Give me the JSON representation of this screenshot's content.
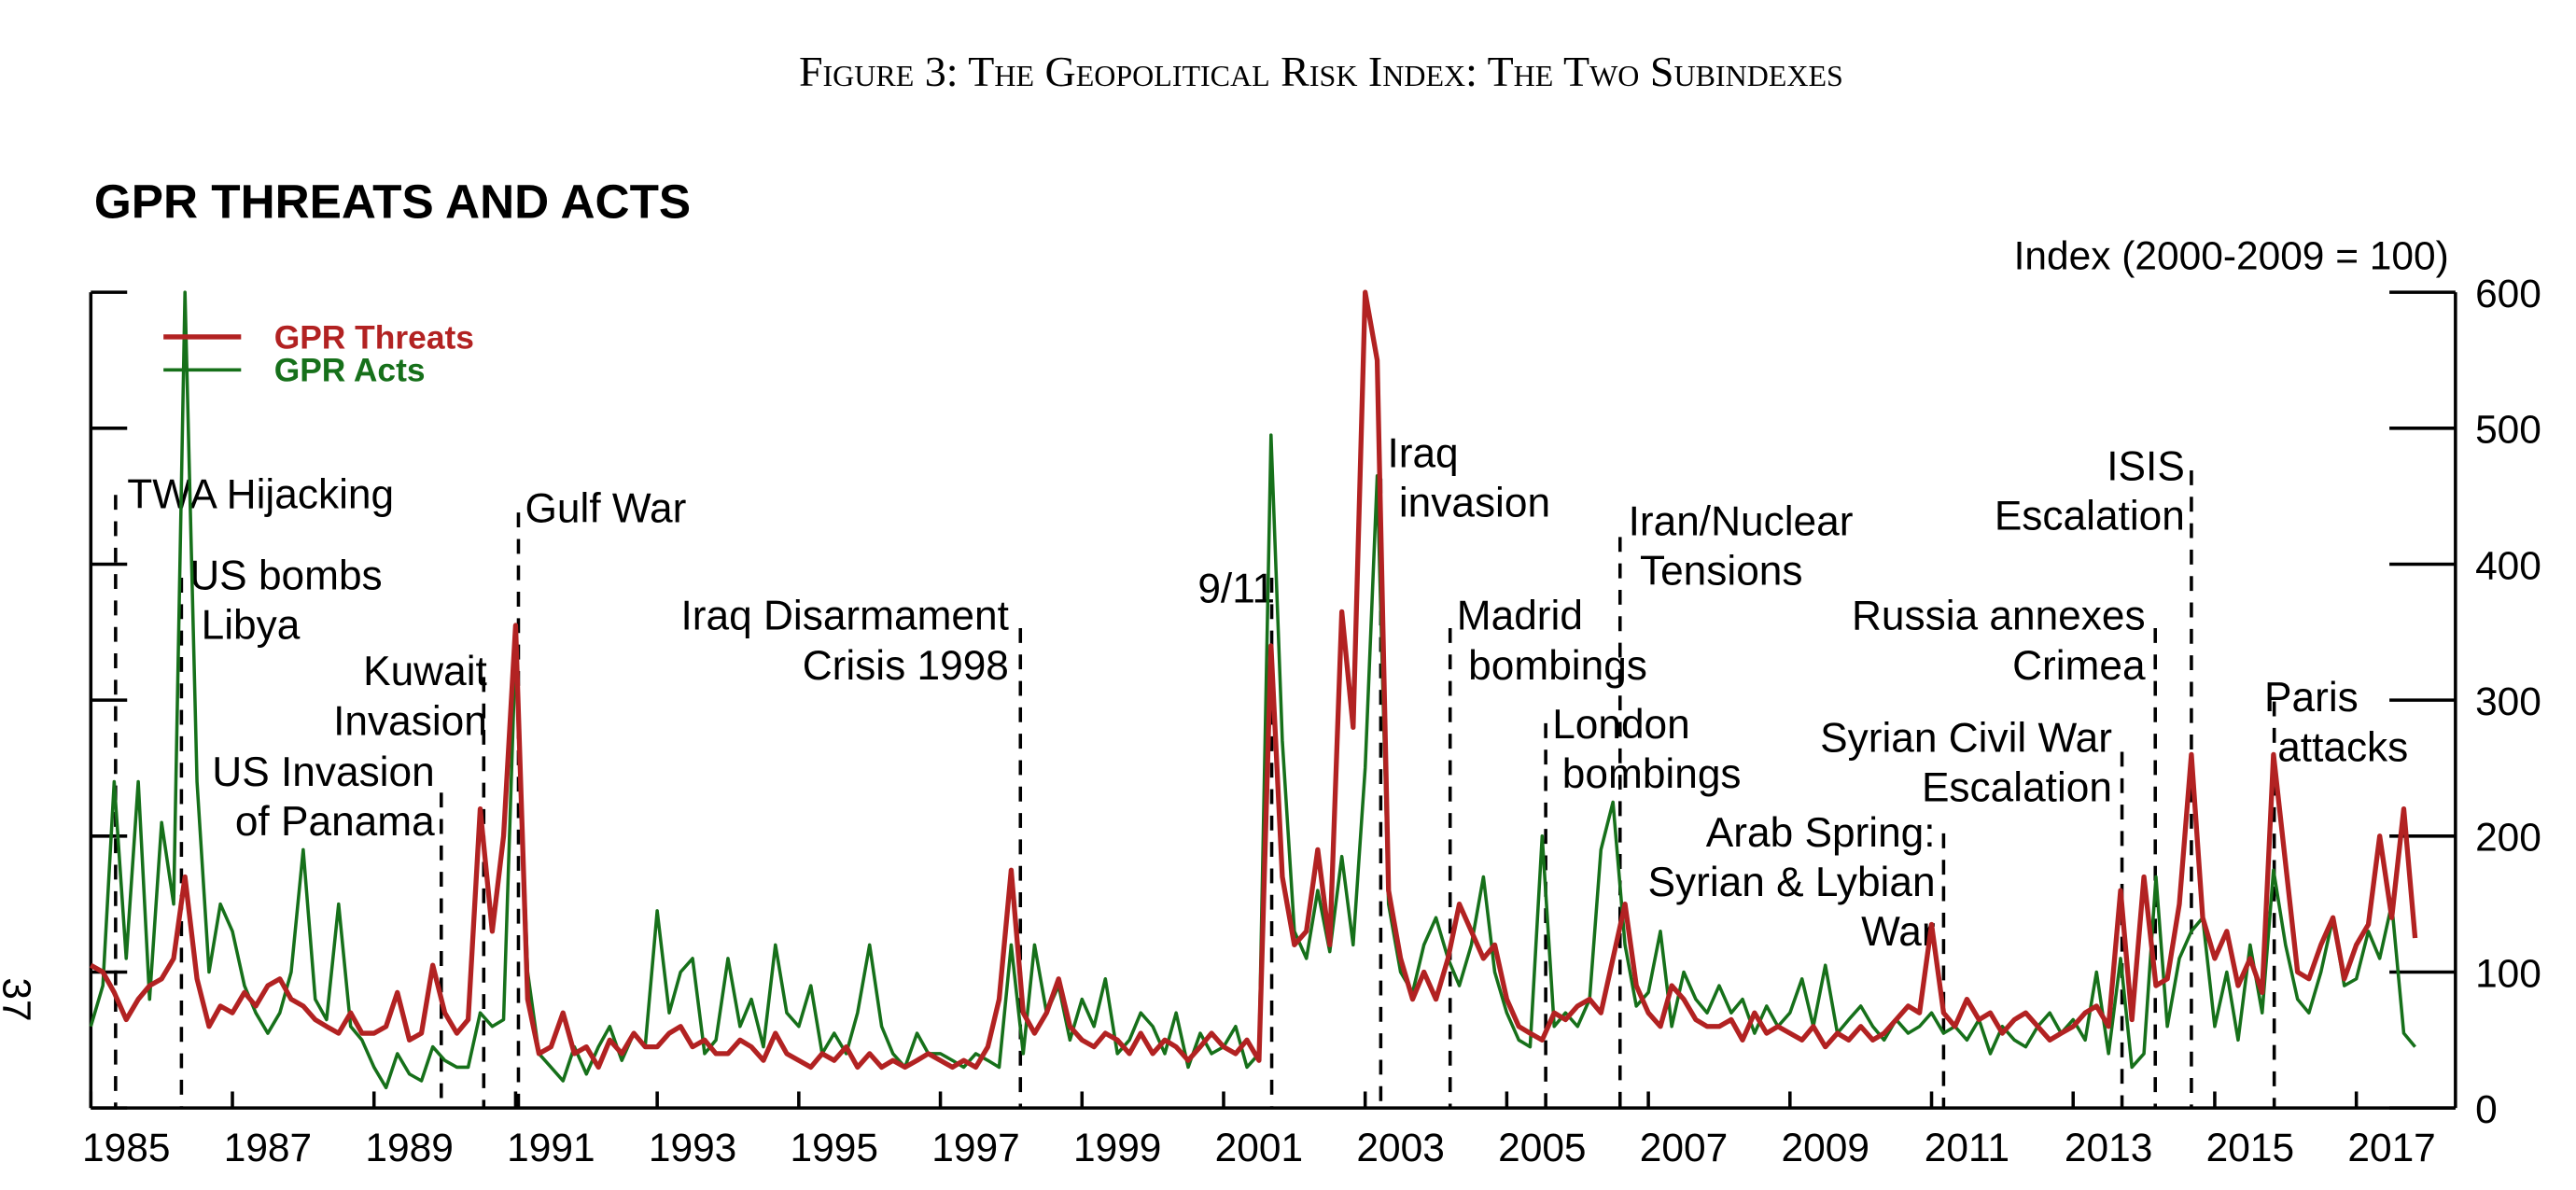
{
  "figure_caption": "Figure 3: The Geopolitical Risk Index: The Two Subindexes",
  "page_number": "37",
  "chart_data": {
    "type": "line",
    "title": "GPR THREATS AND ACTS",
    "y_axis_label": "Index (2000-2009 = 100)",
    "x": [
      1985,
      1985.17,
      1985.33,
      1985.5,
      1985.67,
      1985.83,
      1986,
      1986.17,
      1986.33,
      1986.5,
      1986.67,
      1986.83,
      1987,
      1987.17,
      1987.33,
      1987.5,
      1987.67,
      1987.83,
      1988,
      1988.17,
      1988.33,
      1988.5,
      1988.67,
      1988.83,
      1989,
      1989.17,
      1989.33,
      1989.5,
      1989.67,
      1989.83,
      1990,
      1990.17,
      1990.33,
      1990.5,
      1990.67,
      1990.83,
      1991,
      1991.17,
      1991.33,
      1991.5,
      1991.67,
      1991.83,
      1992,
      1992.17,
      1992.33,
      1992.5,
      1992.67,
      1992.83,
      1993,
      1993.17,
      1993.33,
      1993.5,
      1993.67,
      1993.83,
      1994,
      1994.17,
      1994.33,
      1994.5,
      1994.67,
      1994.83,
      1995,
      1995.17,
      1995.33,
      1995.5,
      1995.67,
      1995.83,
      1996,
      1996.17,
      1996.33,
      1996.5,
      1996.67,
      1996.83,
      1997,
      1997.17,
      1997.33,
      1997.5,
      1997.67,
      1997.83,
      1998,
      1998.17,
      1998.33,
      1998.5,
      1998.67,
      1998.83,
      1999,
      1999.17,
      1999.33,
      1999.5,
      1999.67,
      1999.83,
      2000,
      2000.17,
      2000.33,
      2000.5,
      2000.67,
      2000.83,
      2001,
      2001.17,
      2001.33,
      2001.5,
      2001.67,
      2001.83,
      2002,
      2002.17,
      2002.33,
      2002.5,
      2002.67,
      2002.83,
      2003,
      2003.17,
      2003.33,
      2003.5,
      2003.67,
      2003.83,
      2004,
      2004.17,
      2004.33,
      2004.5,
      2004.67,
      2004.83,
      2005,
      2005.17,
      2005.33,
      2005.5,
      2005.67,
      2005.83,
      2006,
      2006.17,
      2006.33,
      2006.5,
      2006.67,
      2006.83,
      2007,
      2007.17,
      2007.33,
      2007.5,
      2007.67,
      2007.83,
      2008,
      2008.17,
      2008.33,
      2008.5,
      2008.67,
      2008.83,
      2009,
      2009.17,
      2009.33,
      2009.5,
      2009.67,
      2009.83,
      2010,
      2010.17,
      2010.33,
      2010.5,
      2010.67,
      2010.83,
      2011,
      2011.17,
      2011.33,
      2011.5,
      2011.67,
      2011.83,
      2012,
      2012.17,
      2012.33,
      2012.5,
      2012.67,
      2012.83,
      2013,
      2013.17,
      2013.33,
      2013.5,
      2013.67,
      2013.83,
      2014,
      2014.17,
      2014.33,
      2014.5,
      2014.67,
      2014.83,
      2015,
      2015.17,
      2015.33,
      2015.5,
      2015.67,
      2015.83,
      2016,
      2016.17,
      2016.33,
      2016.5,
      2016.67,
      2016.83,
      2017,
      2017.17,
      2017.33,
      2017.5,
      2017.67,
      2017.83
    ],
    "series": [
      {
        "name": "GPR Threats",
        "color": "#b22222",
        "values": [
          105,
          100,
          85,
          65,
          80,
          90,
          95,
          110,
          170,
          95,
          60,
          75,
          70,
          85,
          75,
          90,
          95,
          80,
          75,
          65,
          60,
          55,
          70,
          55,
          55,
          60,
          85,
          50,
          55,
          105,
          70,
          55,
          65,
          220,
          130,
          200,
          355,
          80,
          40,
          45,
          70,
          40,
          45,
          30,
          50,
          40,
          55,
          45,
          45,
          55,
          60,
          45,
          50,
          40,
          40,
          50,
          45,
          35,
          55,
          40,
          35,
          30,
          40,
          35,
          45,
          30,
          40,
          30,
          35,
          30,
          35,
          40,
          35,
          30,
          35,
          30,
          45,
          80,
          175,
          70,
          55,
          70,
          95,
          60,
          50,
          45,
          55,
          50,
          40,
          55,
          40,
          50,
          45,
          35,
          45,
          55,
          45,
          40,
          50,
          35,
          340,
          170,
          120,
          130,
          190,
          120,
          365,
          280,
          600,
          550,
          160,
          110,
          80,
          100,
          80,
          110,
          150,
          130,
          110,
          120,
          80,
          60,
          55,
          50,
          70,
          65,
          75,
          80,
          70,
          110,
          150,
          90,
          70,
          60,
          90,
          80,
          65,
          60,
          60,
          65,
          50,
          70,
          55,
          60,
          55,
          50,
          60,
          45,
          55,
          50,
          60,
          50,
          55,
          65,
          75,
          70,
          135,
          70,
          60,
          80,
          65,
          70,
          55,
          65,
          70,
          60,
          50,
          55,
          60,
          70,
          75,
          60,
          160,
          65,
          170,
          90,
          95,
          150,
          260,
          140,
          110,
          130,
          90,
          110,
          85,
          260,
          180,
          100,
          95,
          120,
          140,
          95,
          120,
          135,
          200,
          140,
          220,
          125
        ]
      },
      {
        "name": "GPR Acts",
        "color": "#16701a",
        "values": [
          60,
          90,
          240,
          110,
          240,
          80,
          210,
          150,
          600,
          240,
          100,
          150,
          130,
          90,
          70,
          55,
          70,
          100,
          190,
          80,
          65,
          150,
          60,
          50,
          30,
          15,
          40,
          25,
          20,
          45,
          35,
          30,
          30,
          70,
          60,
          65,
          340,
          100,
          40,
          30,
          20,
          45,
          25,
          45,
          60,
          35,
          55,
          45,
          145,
          70,
          100,
          110,
          40,
          50,
          110,
          60,
          80,
          45,
          120,
          70,
          60,
          90,
          40,
          55,
          40,
          70,
          120,
          60,
          40,
          30,
          55,
          40,
          40,
          35,
          30,
          40,
          35,
          30,
          120,
          40,
          120,
          70,
          90,
          50,
          80,
          60,
          95,
          40,
          50,
          70,
          60,
          40,
          70,
          30,
          55,
          40,
          45,
          60,
          30,
          40,
          495,
          270,
          130,
          110,
          160,
          115,
          185,
          120,
          250,
          465,
          150,
          100,
          85,
          120,
          140,
          110,
          90,
          120,
          170,
          100,
          70,
          50,
          45,
          200,
          60,
          70,
          60,
          80,
          190,
          225,
          120,
          75,
          85,
          130,
          60,
          100,
          80,
          70,
          90,
          70,
          80,
          55,
          75,
          60,
          70,
          95,
          60,
          105,
          55,
          65,
          75,
          60,
          50,
          65,
          55,
          60,
          70,
          55,
          60,
          50,
          65,
          40,
          60,
          50,
          45,
          60,
          70,
          55,
          65,
          50,
          100,
          40,
          110,
          30,
          40,
          170,
          60,
          110,
          130,
          140,
          60,
          100,
          50,
          120,
          70,
          175,
          120,
          80,
          70,
          100,
          140,
          90,
          95,
          130,
          110,
          150,
          55,
          45
        ]
      }
    ],
    "xlim": [
      1985,
      2018.4
    ],
    "xticks": [
      1985,
      1987,
      1989,
      1991,
      1993,
      1995,
      1997,
      1999,
      2001,
      2003,
      2005,
      2007,
      2009,
      2011,
      2013,
      2015,
      2017
    ],
    "ylim": [
      0,
      600
    ],
    "yticks": [
      0,
      100,
      200,
      300,
      400,
      500,
      600
    ],
    "legend": "upper left",
    "annotations": [
      {
        "text": [
          "TWA Hijacking"
        ],
        "x": 1985.35,
        "y": 451
      },
      {
        "text": [
          "US bombs",
          "Libya"
        ],
        "x": 1986.28,
        "y": 390
      },
      {
        "text": [
          "US Invasion",
          "of Panama"
        ],
        "x": 1989.95,
        "y": 232
      },
      {
        "text": [
          "Kuwait",
          "Invasion"
        ],
        "x": 1990.55,
        "y": 317
      },
      {
        "text": [
          "Gulf War"
        ],
        "x": 1991.04,
        "y": 438
      },
      {
        "text": [
          "Iraq Disarmament",
          "Crisis 1998"
        ],
        "x": 1998.13,
        "y": 353
      },
      {
        "text": [
          "9/11"
        ],
        "x": 2001.68,
        "y": 390
      },
      {
        "text": [
          "Iraq",
          "invasion"
        ],
        "x": 2003.22,
        "y": 463
      },
      {
        "text": [
          "Madrid",
          "bombings"
        ],
        "x": 2004.2,
        "y": 353
      },
      {
        "text": [
          "London",
          "bombings"
        ],
        "x": 2005.55,
        "y": 283
      },
      {
        "text": [
          "Iran/Nuclear",
          "Tensions"
        ],
        "x": 2006.6,
        "y": 420
      },
      {
        "text": [
          "Arab Spring:",
          "Syrian & Lybian",
          "War"
        ],
        "x": 2011.17,
        "y": 202
      },
      {
        "text": [
          "Syrian Civil War",
          "Escalation"
        ],
        "x": 2013.69,
        "y": 262
      },
      {
        "text": [
          "Russia annexes",
          "Crimea"
        ],
        "x": 2014.16,
        "y": 353
      },
      {
        "text": [
          "ISIS",
          "Escalation"
        ],
        "x": 2014.67,
        "y": 469
      },
      {
        "text": [
          "Paris",
          "attacks"
        ],
        "x": 2015.84,
        "y": 299
      }
    ]
  }
}
